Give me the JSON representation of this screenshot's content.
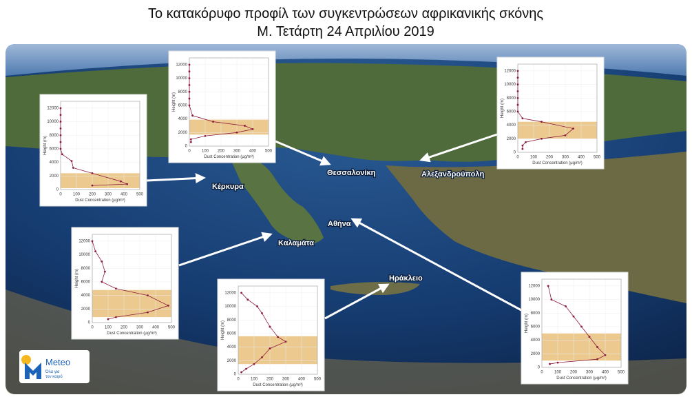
{
  "title": [
    "Το κατακόρυφο προφίλ των συγκεντρώσεων αφρικανικής σκόνης",
    "Μ. Τετάρτη 24 Απριλίου 2019"
  ],
  "places": [
    "Κέρκυρα",
    "Θεσσαλονίκη",
    "Αλεξανδρούπολη",
    "Καλαμάτα",
    "Ηράκλειο",
    "Αθήνα"
  ],
  "logo": {
    "name": "Meteo",
    "tagline": [
      "Όλα για",
      "τον καιρό"
    ]
  },
  "chart_data": [
    {
      "type": "line",
      "x_label": "Dust Concentration (μg/m³)",
      "y_label": "Height (m)",
      "color": "#8b1a3a",
      "layer_color": "#e6b86a",
      "x": [
        0,
        0,
        0,
        0,
        0,
        0,
        0,
        10,
        70,
        80,
        200,
        380,
        420,
        200
      ],
      "values": [
        12000,
        11000,
        10000,
        9000,
        8000,
        7000,
        6000,
        5200,
        4200,
        3200,
        2400,
        1200,
        800,
        600
      ],
      "dust_layer": [
        200,
        2400
      ],
      "xlim": [
        0,
        500
      ],
      "ylim": [
        0,
        13000
      ],
      "xticks": [
        0,
        100,
        200,
        300,
        400,
        500
      ],
      "yticks": [
        0,
        2000,
        4000,
        6000,
        8000,
        10000,
        12000
      ]
    },
    {
      "type": "line",
      "x_label": "Dust Concentration (μg/m³)",
      "y_label": "Height (m)",
      "color": "#8b1a3a",
      "layer_color": "#e6b86a",
      "x": [
        0,
        0,
        0,
        0,
        0,
        0,
        0,
        20,
        150,
        350,
        400,
        300,
        100,
        10,
        10
      ],
      "values": [
        12000,
        11000,
        10000,
        9000,
        8000,
        7000,
        6000,
        4500,
        3600,
        3000,
        2500,
        2000,
        1500,
        1000,
        600
      ],
      "dust_layer": [
        1700,
        3900
      ],
      "xlim": [
        0,
        500
      ],
      "ylim": [
        0,
        13000
      ],
      "xticks": [
        0,
        100,
        200,
        300,
        400,
        500
      ],
      "yticks": [
        0,
        2000,
        4000,
        6000,
        8000,
        10000,
        12000
      ]
    },
    {
      "type": "line",
      "x_label": "Dust Concentration (μg/m³)",
      "y_label": "Height (m)",
      "color": "#8b1a3a",
      "layer_color": "#e6b86a",
      "x": [
        0,
        0,
        0,
        0,
        0,
        0,
        0,
        30,
        150,
        350,
        300,
        150,
        50,
        30,
        30
      ],
      "values": [
        12000,
        11000,
        10000,
        9000,
        8000,
        7000,
        6000,
        5000,
        4500,
        3500,
        2500,
        2000,
        1500,
        1000,
        500
      ],
      "dust_layer": [
        2000,
        4500
      ],
      "xlim": [
        0,
        500
      ],
      "ylim": [
        0,
        13000
      ],
      "xticks": [
        0,
        100,
        200,
        300,
        400,
        500
      ],
      "yticks": [
        0,
        2000,
        4000,
        6000,
        8000,
        10000,
        12000
      ]
    },
    {
      "type": "line",
      "x_label": "Dust Concentration (μg/m³)",
      "y_label": "Height (m)",
      "color": "#8b1a3a",
      "layer_color": "#e6b86a",
      "x": [
        0,
        20,
        60,
        80,
        60,
        150,
        350,
        480,
        350,
        150,
        100
      ],
      "values": [
        12000,
        10500,
        9000,
        7500,
        6000,
        5000,
        4000,
        2500,
        1500,
        800,
        500
      ],
      "dust_layer": [
        800,
        4800
      ],
      "xlim": [
        0,
        500
      ],
      "ylim": [
        0,
        13000
      ],
      "xticks": [
        0,
        100,
        200,
        300,
        400,
        500
      ],
      "yticks": [
        0,
        2000,
        4000,
        6000,
        8000,
        10000,
        12000
      ]
    },
    {
      "type": "line",
      "x_label": "Dust Concentration (μg/m³)",
      "y_label": "Height (m)",
      "color": "#8b1a3a",
      "layer_color": "#e6b86a",
      "x": [
        20,
        60,
        120,
        150,
        200,
        250,
        300,
        200,
        150,
        100,
        50,
        20
      ],
      "values": [
        12000,
        11000,
        10000,
        9000,
        7000,
        5500,
        4800,
        3800,
        2500,
        1500,
        800,
        300
      ],
      "dust_layer": [
        1500,
        5600
      ],
      "xlim": [
        0,
        500
      ],
      "ylim": [
        0,
        13000
      ],
      "xticks": [
        0,
        100,
        200,
        300,
        400,
        500
      ],
      "yticks": [
        0,
        2000,
        4000,
        6000,
        8000,
        10000,
        12000
      ]
    },
    {
      "type": "line",
      "x_label": "Dust Concentration (μg/m³)",
      "y_label": "Height (m)",
      "color": "#8b1a3a",
      "layer_color": "#e6b86a",
      "x": [
        40,
        60,
        150,
        200,
        250,
        300,
        350,
        400,
        350,
        100,
        50
      ],
      "values": [
        12000,
        10000,
        9000,
        7500,
        6000,
        4500,
        3000,
        1800,
        1200,
        700,
        500
      ],
      "dust_layer": [
        1000,
        5000
      ],
      "xlim": [
        0,
        500
      ],
      "ylim": [
        0,
        13000
      ],
      "xticks": [
        0,
        100,
        200,
        300,
        400,
        500
      ],
      "yticks": [
        0,
        2000,
        4000,
        6000,
        8000,
        10000,
        12000
      ]
    }
  ]
}
